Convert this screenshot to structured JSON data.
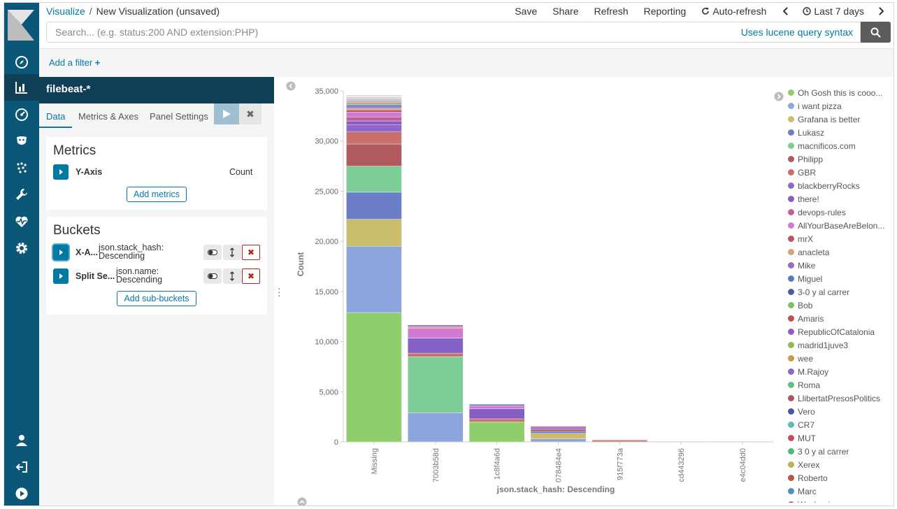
{
  "header": {
    "breadcrumb_root": "Visualize",
    "breadcrumb_current": "New Visualization (unsaved)",
    "menu": {
      "save": "Save",
      "share": "Share",
      "refresh": "Refresh",
      "reporting": "Reporting",
      "auto_refresh": "Auto-refresh",
      "time_range": "Last 7 days"
    },
    "search_placeholder": "Search... (e.g. status:200 AND extension:PHP)",
    "lucene_link": "Uses lucene query syntax"
  },
  "filterbar": {
    "add_filter": "Add a filter"
  },
  "sidebar": {
    "index_pattern": "filebeat-*",
    "tabs": [
      "Data",
      "Metrics & Axes",
      "Panel Settings"
    ],
    "metrics": {
      "title": "Metrics",
      "y_axis_label": "Y-Axis",
      "y_axis_value": "Count",
      "add_button": "Add metrics"
    },
    "buckets": {
      "title": "Buckets",
      "rows": [
        {
          "label": "X-A...",
          "value_line1": "json.stack_hash:",
          "value_line2": "Descending"
        },
        {
          "label": "Split Se...",
          "value_line1": "json.name:",
          "value_line2": "Descending"
        }
      ],
      "add_button": "Add sub-buckets"
    }
  },
  "colors": {
    "accent": "#0079a5",
    "nav_bg": "#0b5778",
    "nav_active": "#0f3e57",
    "delete": "#b3261e"
  },
  "chart_data": {
    "type": "bar",
    "stacked": true,
    "xlabel": "json.stack_hash: Descending",
    "ylabel": "Count",
    "ylim": [
      0,
      35000
    ],
    "yticks": [
      "0",
      "5,000",
      "10,000",
      "15,000",
      "20,000",
      "25,000",
      "30,000",
      "35,000"
    ],
    "categories": [
      "Missing",
      "7003b58d",
      "1c8f4a6d",
      "078484e4",
      "915f773a",
      "cd443296",
      "e4c04dd0"
    ],
    "series": [
      {
        "name": "Oh Gosh this is cooo...",
        "color": "#8fcc6b",
        "values": [
          12900,
          0,
          2000,
          0,
          0,
          0,
          0
        ]
      },
      {
        "name": "i want pizza",
        "color": "#8da4dd",
        "values": [
          6600,
          2900,
          0,
          300,
          0,
          0,
          0
        ]
      },
      {
        "name": "Grafana is better",
        "color": "#cbbd6e",
        "values": [
          2700,
          0,
          0,
          550,
          0,
          0,
          0
        ]
      },
      {
        "name": "Lukasz",
        "color": "#6c7ec7",
        "values": [
          2700,
          0,
          0,
          200,
          0,
          0,
          0
        ]
      },
      {
        "name": "macnificos.com",
        "color": "#7dcd96",
        "values": [
          2600,
          5600,
          0,
          0,
          0,
          0,
          0
        ]
      },
      {
        "name": "Philipp",
        "color": "#ae5a5e",
        "values": [
          2200,
          0,
          0,
          200,
          0,
          0,
          0
        ]
      },
      {
        "name": "GBR",
        "color": "#c9706a",
        "values": [
          1200,
          350,
          300,
          0,
          150,
          50,
          50
        ]
      },
      {
        "name": "blackberryRocks",
        "color": "#9067c7",
        "values": [
          700,
          0,
          0,
          0,
          0,
          0,
          0
        ]
      },
      {
        "name": "there!",
        "color": "#8560c4",
        "values": [
          400,
          1500,
          1000,
          150,
          0,
          0,
          0
        ]
      },
      {
        "name": "devops-rules",
        "color": "#c25f94",
        "values": [
          400,
          0,
          0,
          150,
          60,
          0,
          0
        ]
      },
      {
        "name": "AllYourBaseAreBelon...",
        "color": "#d17ad1",
        "values": [
          500,
          1000,
          300,
          0,
          0,
          0,
          0
        ]
      },
      {
        "name": "mrX",
        "color": "#b85660",
        "values": [
          200,
          0,
          0,
          0,
          0,
          0,
          0
        ]
      },
      {
        "name": "anacleta",
        "color": "#d9a075",
        "values": [
          150,
          150,
          0,
          0,
          0,
          0,
          0
        ]
      },
      {
        "name": "Mike",
        "color": "#9b69c9",
        "values": [
          150,
          0,
          0,
          0,
          0,
          0,
          0
        ]
      },
      {
        "name": "Miguel",
        "color": "#5879bd",
        "values": [
          150,
          0,
          150,
          0,
          0,
          0,
          0
        ]
      },
      {
        "name": "3-0 y al carrer",
        "color": "#4c5aa8",
        "values": [
          100,
          0,
          0,
          0,
          0,
          0,
          0
        ]
      },
      {
        "name": "Bob",
        "color": "#79c468",
        "values": [
          100,
          0,
          0,
          0,
          0,
          0,
          0
        ]
      },
      {
        "name": "Amaris",
        "color": "#bb5050",
        "values": [
          100,
          0,
          0,
          0,
          0,
          0,
          0
        ]
      },
      {
        "name": "RepublicOfCatalonia",
        "color": "#9a5ac5",
        "values": [
          80,
          0,
          0,
          0,
          0,
          0,
          0
        ]
      },
      {
        "name": "madrid1juve3",
        "color": "#8cbe4f",
        "values": [
          80,
          0,
          0,
          0,
          0,
          0,
          0
        ]
      },
      {
        "name": "wee",
        "color": "#c9994a",
        "values": [
          60,
          0,
          0,
          0,
          0,
          0,
          0
        ]
      },
      {
        "name": "M.Rajoy",
        "color": "#9165c9",
        "values": [
          60,
          150,
          0,
          0,
          0,
          0,
          0
        ]
      },
      {
        "name": "Roma",
        "color": "#5ebf82",
        "values": [
          60,
          0,
          0,
          0,
          0,
          0,
          0
        ]
      },
      {
        "name": "LlibertatPresosPolitics",
        "color": "#b05562",
        "values": [
          50,
          0,
          0,
          0,
          0,
          0,
          0
        ]
      },
      {
        "name": "Vero",
        "color": "#4656a8",
        "values": [
          50,
          0,
          0,
          0,
          0,
          0,
          0
        ]
      },
      {
        "name": "CR7",
        "color": "#5cbbb3",
        "values": [
          50,
          0,
          0,
          0,
          0,
          0,
          0
        ]
      },
      {
        "name": "MUT",
        "color": "#c44f57",
        "values": [
          50,
          0,
          0,
          0,
          0,
          0,
          0
        ]
      },
      {
        "name": "3 0 y al carrer",
        "color": "#52b87b",
        "values": [
          40,
          0,
          0,
          0,
          0,
          0,
          0
        ]
      },
      {
        "name": "Xerex",
        "color": "#b8b54f",
        "values": [
          40,
          0,
          0,
          0,
          0,
          0,
          0
        ]
      },
      {
        "name": "Roberto",
        "color": "#b9543f",
        "values": [
          40,
          0,
          0,
          0,
          0,
          0,
          0
        ]
      },
      {
        "name": "Marc",
        "color": "#4f8fb8",
        "values": [
          40,
          0,
          0,
          0,
          0,
          0,
          0
        ]
      },
      {
        "name": "Washogiaz",
        "color": "#c24fb3",
        "values": [
          30,
          0,
          0,
          0,
          0,
          0,
          0
        ]
      }
    ]
  }
}
